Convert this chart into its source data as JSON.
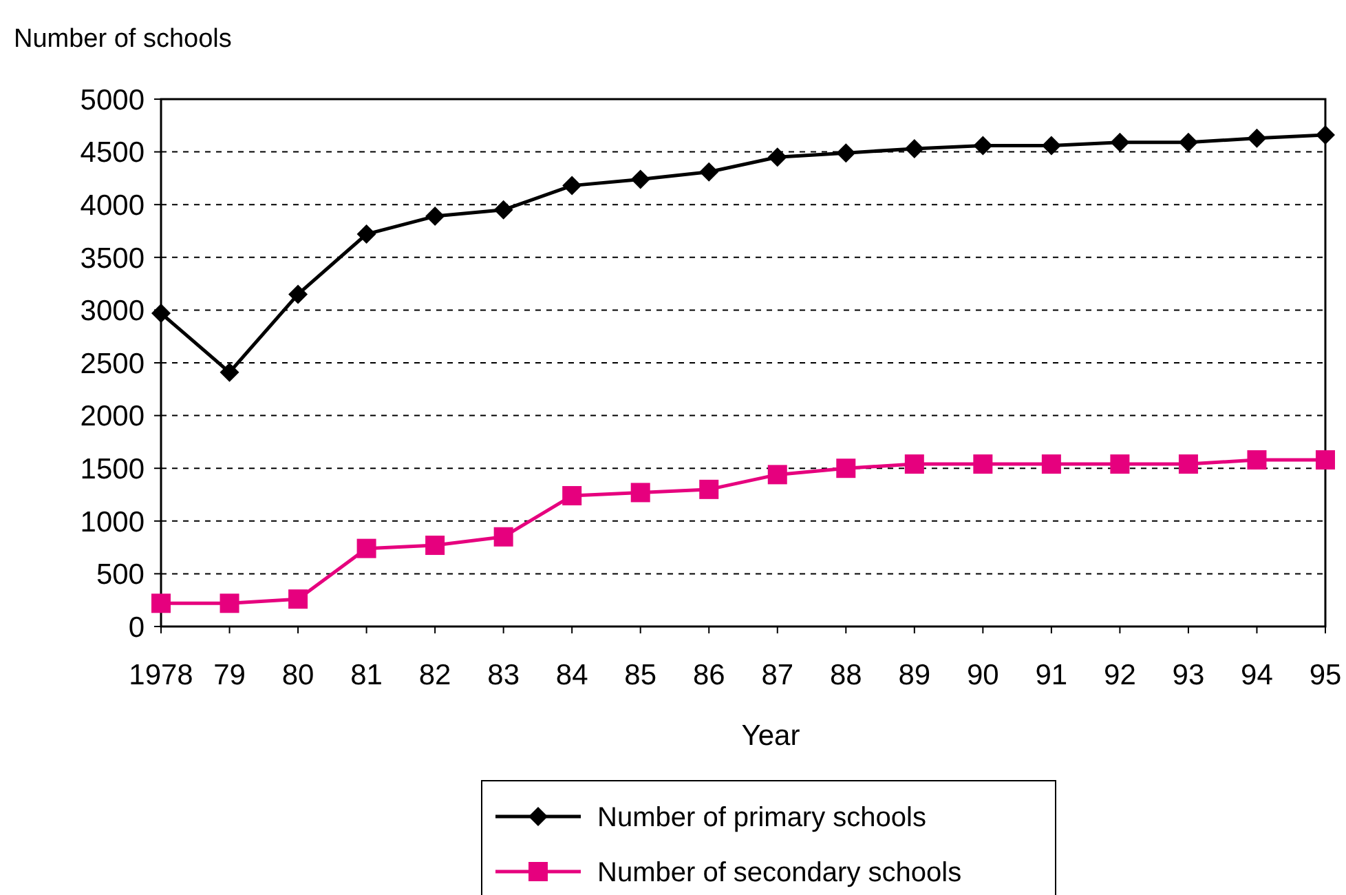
{
  "chart_data": {
    "type": "line",
    "ylabel": "Number of schools",
    "xlabel": "Year",
    "categories": [
      "1978",
      "79",
      "80",
      "81",
      "82",
      "83",
      "84",
      "85",
      "86",
      "87",
      "88",
      "89",
      "90",
      "91",
      "92",
      "93",
      "94",
      "95"
    ],
    "series": [
      {
        "name": "Number of primary schools",
        "color": "#000000",
        "marker": "diamond",
        "values": [
          2970,
          2410,
          3150,
          3720,
          3890,
          3950,
          4180,
          4240,
          4310,
          4450,
          4490,
          4530,
          4560,
          4560,
          4590,
          4590,
          4630,
          4660
        ]
      },
      {
        "name": "Number of secondary schools",
        "color": "#e6007e",
        "marker": "square",
        "values": [
          220,
          220,
          260,
          740,
          770,
          850,
          1240,
          1270,
          1300,
          1440,
          1500,
          1540,
          1540,
          1540,
          1540,
          1540,
          1580,
          1580
        ]
      }
    ],
    "ylim": [
      0,
      5000
    ],
    "yticks": [
      0,
      500,
      1000,
      1500,
      2000,
      2500,
      3000,
      3500,
      4000,
      4500,
      5000
    ],
    "grid": "y",
    "legend": "bottom",
    "line_style": "solid"
  }
}
